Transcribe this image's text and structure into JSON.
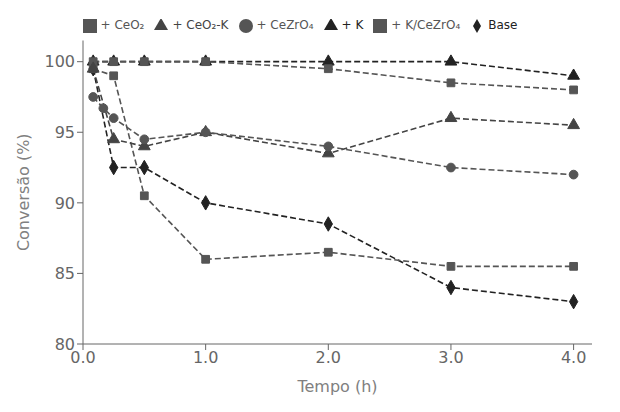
{
  "chart_data": {
    "type": "line",
    "x_label": "Tempo (h)",
    "y_label": "Conversão (%)",
    "xlim": [
      0.0,
      4.15
    ],
    "ylim": [
      80,
      101.5
    ],
    "xticks": [
      {
        "value": 0.0,
        "label": "0.0"
      },
      {
        "value": 1.0,
        "label": "1.0"
      },
      {
        "value": 2.0,
        "label": "2.0"
      },
      {
        "value": 3.0,
        "label": "3.0"
      },
      {
        "value": 4.0,
        "label": "4.0"
      }
    ],
    "yticks": [
      80,
      85,
      90,
      95,
      100
    ],
    "grid": false,
    "legend": "top",
    "series": [
      {
        "name": "Base",
        "color": "#222222",
        "marker": "diamond",
        "line_style": "dashed",
        "x": [
          0.083,
          0.25,
          0.5,
          1.0,
          2.0,
          3.0,
          4.0
        ],
        "values": [
          99.5,
          92.5,
          92.5,
          90.0,
          88.5,
          84.0,
          83.0
        ]
      },
      {
        "name": "+ K",
        "color": "#222222",
        "marker": "triangle",
        "line_style": "dashed",
        "x": [
          0.083,
          0.25,
          0.5,
          1.0,
          2.0,
          3.0,
          4.0
        ],
        "values": [
          100.0,
          100.0,
          100.0,
          100.0,
          100.0,
          100.0,
          99.0
        ]
      },
      {
        "name": "+ K/CeZrO₄",
        "color": "#555555",
        "marker": "square",
        "line_style": "dashed",
        "x": [
          0.083,
          0.25,
          0.5,
          1.0,
          2.0,
          3.0,
          4.0
        ],
        "values": [
          100.0,
          100.0,
          100.0,
          100.0,
          99.5,
          98.5,
          98.0
        ]
      },
      {
        "name": "+ CeO₂",
        "color": "#555555",
        "marker": "square",
        "line_style": "dashed",
        "x": [
          0.083,
          0.25,
          0.5,
          1.0,
          2.0,
          3.0,
          4.0
        ],
        "values": [
          99.5,
          99.0,
          90.5,
          86.0,
          86.5,
          85.5,
          85.5
        ]
      },
      {
        "name": "+ CeO₂-K",
        "color": "#444444",
        "marker": "triangle",
        "line_style": "dashed",
        "x": [
          0.083,
          0.25,
          0.5,
          1.0,
          2.0,
          3.0,
          4.0
        ],
        "values": [
          99.5,
          94.5,
          94.0,
          95.0,
          93.5,
          96.0,
          95.5
        ]
      },
      {
        "name": "+ CeZrO₄",
        "color": "#555555",
        "marker": "circle",
        "line_style": "dashed",
        "x": [
          0.083,
          0.166,
          0.25,
          0.5,
          1.0,
          2.0,
          3.0,
          4.0
        ],
        "values": [
          97.5,
          96.7,
          96.0,
          94.5,
          95.0,
          94.0,
          92.5,
          92.0
        ]
      }
    ]
  }
}
